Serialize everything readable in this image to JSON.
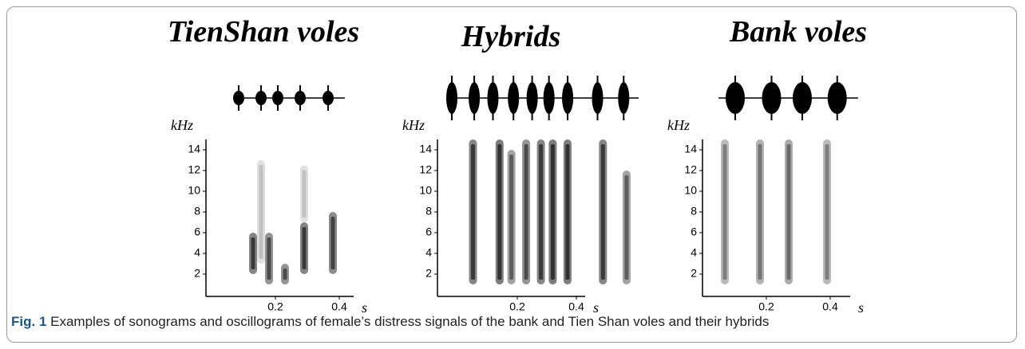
{
  "panels": [
    {
      "title": "TienShan voles",
      "y_label": "kHz",
      "yticks": [
        2,
        4,
        6,
        8,
        10,
        12,
        14
      ],
      "xticks": [
        0.2,
        0.4
      ],
      "x_label": "s"
    },
    {
      "title": "Hybrids",
      "y_label": "kHz",
      "yticks": [
        2,
        4,
        6,
        8,
        10,
        12,
        14
      ],
      "xticks": [
        0.2,
        0.4
      ],
      "x_label": "s"
    },
    {
      "title": "Bank voles",
      "y_label": "kHz",
      "yticks": [
        2,
        4,
        6,
        8,
        10,
        12,
        14
      ],
      "xticks": [
        0.2,
        0.4
      ],
      "x_label": "s"
    }
  ],
  "caption": {
    "label": "Fig. 1",
    "text": "Examples of sonograms and oscillograms of female’s distress signals of the bank and Tien Shan voles and their hybrids"
  }
}
